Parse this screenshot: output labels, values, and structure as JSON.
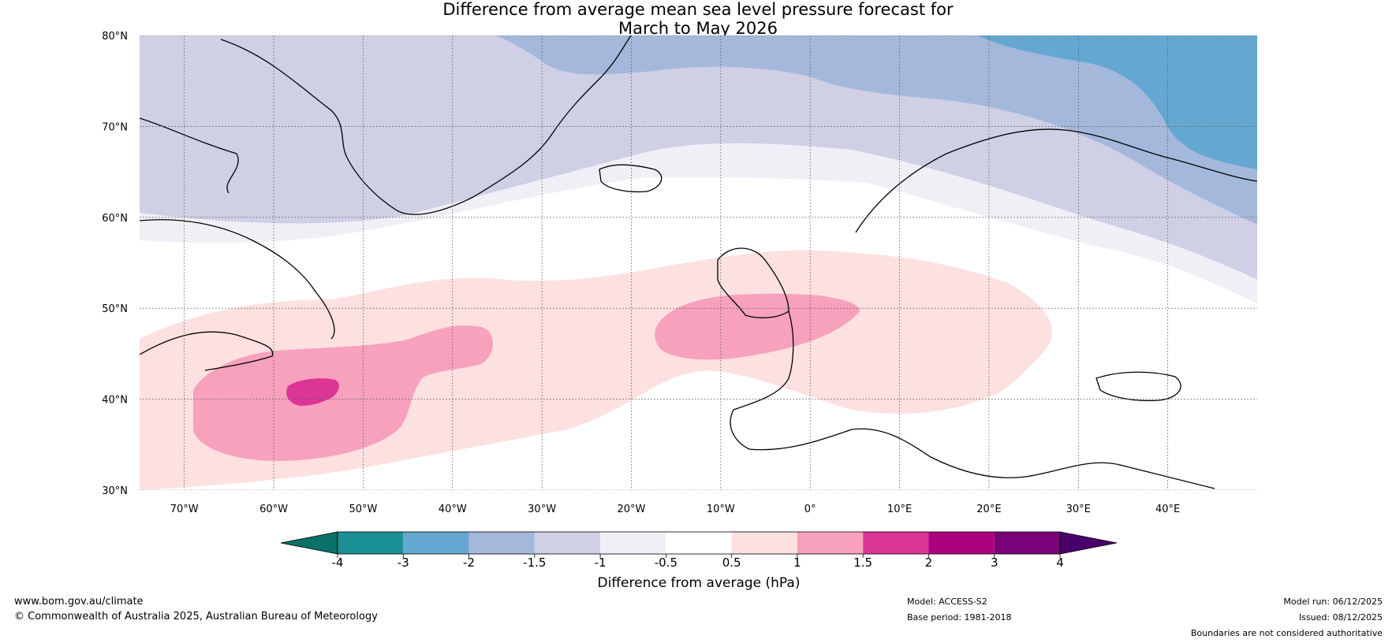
{
  "title": {
    "line1": "Difference from average mean sea level pressure forecast for",
    "line2": "March to May 2026"
  },
  "map": {
    "lat_labels": [
      "30°N",
      "40°N",
      "50°N",
      "60°N",
      "70°N",
      "80°N"
    ],
    "lon_labels": [
      "70°W",
      "60°W",
      "50°W",
      "40°W",
      "30°W",
      "20°W",
      "10°W",
      "0°",
      "10°E",
      "20°E",
      "30°E",
      "40°E"
    ],
    "lon_range": [
      -75,
      50
    ],
    "lat_range": [
      30,
      80
    ],
    "colors": {
      "land_outline": "#000000",
      "border": "#808080",
      "grid": "#555555"
    }
  },
  "colorbar": {
    "ticks": [
      "-4",
      "-3",
      "-2",
      "-1.5",
      "-1",
      "-0.5",
      "0.5",
      "1",
      "1.5",
      "2",
      "3",
      "4"
    ],
    "colors": [
      "#1b9096",
      "#64a8d1",
      "#a4b8db",
      "#cfcfe6",
      "#f1eff6",
      "#ffffff",
      "#fde0e0",
      "#f7a1bd",
      "#dd3497",
      "#ae017e",
      "#7a0177"
    ],
    "under_color": "#0b7068",
    "over_color": "#49006a",
    "label": "Difference from average (hPa)"
  },
  "footer": {
    "site": "www.bom.gov.au/climate",
    "copyright": "© Commonwealth of Australia 2025, Australian Bureau of Meteorology",
    "model": "Model: ACCESS-S2",
    "base_period": "Base period: 1981-2018",
    "model_run": "Model run: 06/12/2025",
    "issued": "Issued: 08/12/2025",
    "disclaimer": "Boundaries are not considered authoritative"
  }
}
